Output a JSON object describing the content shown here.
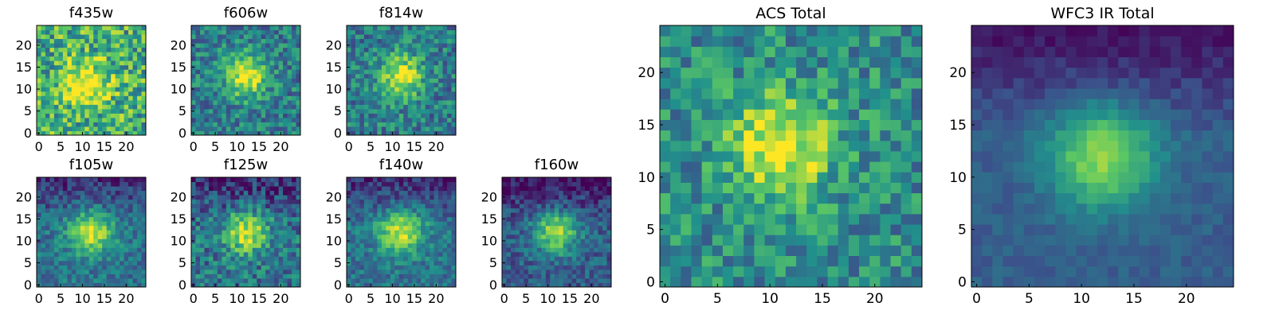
{
  "figure": {
    "colormap": "viridis",
    "colormap_stops": [
      "#440154",
      "#3b528b",
      "#21918c",
      "#5ec962",
      "#fde725"
    ],
    "frame_color": "#000000",
    "background": "#ffffff"
  },
  "chart_data": [
    {
      "type": "heatmap",
      "title": "f435w",
      "xlabel": "",
      "ylabel": "",
      "grid": false,
      "shape": [
        25,
        25
      ],
      "xlim": [
        -0.5,
        24.5
      ],
      "ylim": [
        -0.5,
        24.5
      ],
      "xticks": [
        0,
        5,
        10,
        15,
        20
      ],
      "yticks": [
        0,
        5,
        10,
        15,
        20
      ],
      "source_center": [
        11,
        11
      ],
      "source_description": "noise dominated, uniformly bright"
    },
    {
      "type": "heatmap",
      "title": "f606w",
      "xlabel": "",
      "ylabel": "",
      "grid": false,
      "shape": [
        25,
        25
      ],
      "xlim": [
        -0.5,
        24.5
      ],
      "ylim": [
        -0.5,
        24.5
      ],
      "xticks": [
        0,
        5,
        10,
        15,
        20
      ],
      "yticks": [
        0,
        5,
        10,
        15,
        20
      ],
      "source_center": [
        12,
        13
      ]
    },
    {
      "type": "heatmap",
      "title": "f814w",
      "xlabel": "",
      "ylabel": "",
      "grid": false,
      "shape": [
        25,
        25
      ],
      "xlim": [
        -0.5,
        24.5
      ],
      "ylim": [
        -0.5,
        24.5
      ],
      "xticks": [
        0,
        5,
        10,
        15,
        20
      ],
      "yticks": [
        0,
        5,
        10,
        15,
        20
      ],
      "source_center": [
        12,
        13
      ]
    },
    {
      "type": "heatmap",
      "title": "f105w",
      "xlabel": "",
      "ylabel": "",
      "grid": false,
      "shape": [
        25,
        25
      ],
      "xlim": [
        -0.5,
        24.5
      ],
      "ylim": [
        -0.5,
        24.5
      ],
      "xticks": [
        0,
        5,
        10,
        15,
        20
      ],
      "yticks": [
        0,
        5,
        10,
        15,
        20
      ],
      "source_center": [
        12,
        12
      ]
    },
    {
      "type": "heatmap",
      "title": "f125w",
      "xlabel": "",
      "ylabel": "",
      "grid": false,
      "shape": [
        25,
        25
      ],
      "xlim": [
        -0.5,
        24.5
      ],
      "ylim": [
        -0.5,
        24.5
      ],
      "xticks": [
        0,
        5,
        10,
        15,
        20
      ],
      "yticks": [
        0,
        5,
        10,
        15,
        20
      ],
      "source_center": [
        12,
        12
      ]
    },
    {
      "type": "heatmap",
      "title": "f140w",
      "xlabel": "",
      "ylabel": "",
      "grid": false,
      "shape": [
        25,
        25
      ],
      "xlim": [
        -0.5,
        24.5
      ],
      "ylim": [
        -0.5,
        24.5
      ],
      "xticks": [
        0,
        5,
        10,
        15,
        20
      ],
      "yticks": [
        0,
        5,
        10,
        15,
        20
      ],
      "source_center": [
        12,
        12
      ]
    },
    {
      "type": "heatmap",
      "title": "f160w",
      "xlabel": "",
      "ylabel": "",
      "grid": false,
      "shape": [
        25,
        25
      ],
      "xlim": [
        -0.5,
        24.5
      ],
      "ylim": [
        -0.5,
        24.5
      ],
      "xticks": [
        0,
        5,
        10,
        15,
        20
      ],
      "yticks": [
        0,
        5,
        10,
        15,
        20
      ],
      "source_center": [
        12,
        12
      ]
    },
    {
      "type": "heatmap",
      "title": "ACS Total",
      "xlabel": "",
      "ylabel": "",
      "grid": false,
      "shape": [
        25,
        25
      ],
      "xlim": [
        -0.5,
        24.5
      ],
      "ylim": [
        -0.5,
        24.5
      ],
      "xticks": [
        0,
        5,
        10,
        15,
        20
      ],
      "yticks": [
        0,
        5,
        10,
        15,
        20
      ],
      "source_center": [
        11,
        13
      ]
    },
    {
      "type": "heatmap",
      "title": "WFC3 IR Total",
      "xlabel": "",
      "ylabel": "",
      "grid": false,
      "shape": [
        25,
        25
      ],
      "xlim": [
        -0.5,
        24.5
      ],
      "ylim": [
        -0.5,
        24.5
      ],
      "xticks": [
        0,
        5,
        10,
        15,
        20
      ],
      "yticks": [
        0,
        5,
        10,
        15,
        20
      ],
      "source_center": [
        12,
        12
      ]
    }
  ]
}
